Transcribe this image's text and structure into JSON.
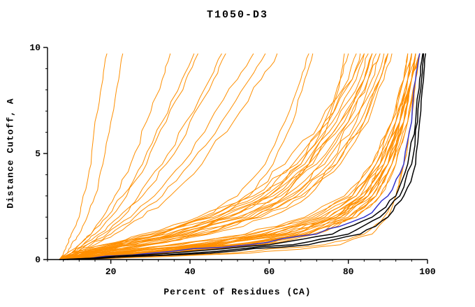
{
  "chart_data": {
    "type": "line",
    "title": "T1050-D3",
    "xlabel": "Percent of Residues (CA)",
    "ylabel": "Distance Cutoff, A",
    "xlim": [
      4,
      100
    ],
    "ylim": [
      0,
      10
    ],
    "xticks": [
      20,
      40,
      60,
      80,
      100
    ],
    "yticks": [
      0,
      5,
      10
    ],
    "x_minor_step": 4,
    "y_minor_step": 1,
    "grid": false,
    "legend_position": "none",
    "colors": {
      "orange": "#ff8f00",
      "blue": "#3333cc",
      "black": "#000000",
      "axis": "#000000",
      "background": "#ffffff"
    },
    "shared_y": [
      0,
      0.3,
      0.7,
      1.2,
      2,
      3,
      4.5,
      6.5,
      8.5,
      9.7
    ],
    "series": [
      {
        "color": "orange",
        "x": [
          8,
          22,
          44,
          60,
          74,
          82,
          88,
          92,
          95,
          96
        ]
      },
      {
        "color": "orange",
        "x": [
          7,
          26,
          50,
          66,
          78,
          85,
          90,
          94,
          96,
          97
        ]
      },
      {
        "color": "orange",
        "x": [
          9,
          30,
          55,
          70,
          80,
          87,
          91,
          95,
          97,
          98
        ]
      },
      {
        "color": "orange",
        "x": [
          8,
          18,
          40,
          58,
          72,
          81,
          87,
          91,
          94,
          95
        ]
      },
      {
        "color": "orange",
        "x": [
          10,
          35,
          58,
          72,
          82,
          88,
          92,
          95,
          97,
          98
        ]
      },
      {
        "color": "orange",
        "x": [
          7,
          15,
          35,
          55,
          70,
          80,
          86,
          91,
          94,
          96
        ]
      },
      {
        "color": "orange",
        "x": [
          8,
          24,
          46,
          63,
          76,
          84,
          89,
          93,
          96,
          97
        ]
      },
      {
        "color": "orange",
        "x": [
          9,
          28,
          52,
          68,
          79,
          86,
          90,
          94,
          96,
          97
        ]
      },
      {
        "color": "orange",
        "x": [
          7,
          20,
          42,
          60,
          75,
          83,
          88,
          93,
          95,
          96
        ]
      },
      {
        "color": "orange",
        "x": [
          8,
          32,
          56,
          71,
          81,
          87,
          91,
          94,
          96,
          98
        ]
      },
      {
        "color": "orange",
        "x": [
          10,
          26,
          48,
          64,
          77,
          85,
          90,
          93,
          96,
          97
        ]
      },
      {
        "color": "orange",
        "x": [
          7,
          17,
          38,
          56,
          71,
          81,
          87,
          92,
          95,
          96
        ]
      },
      {
        "color": "orange",
        "x": [
          8,
          23,
          45,
          62,
          76,
          84,
          89,
          93,
          95,
          97
        ]
      },
      {
        "color": "orange",
        "x": [
          9,
          29,
          53,
          69,
          80,
          86,
          91,
          94,
          96,
          98
        ]
      },
      {
        "color": "orange",
        "x": [
          7,
          21,
          43,
          61,
          75,
          83,
          89,
          93,
          96,
          97
        ]
      },
      {
        "color": "orange",
        "x": [
          8,
          27,
          51,
          67,
          78,
          85,
          90,
          94,
          96,
          97
        ]
      },
      {
        "color": "orange",
        "x": [
          9,
          33,
          57,
          72,
          82,
          88,
          92,
          95,
          97,
          98
        ]
      },
      {
        "color": "orange",
        "x": [
          7,
          19,
          41,
          59,
          73,
          82,
          88,
          92,
          95,
          96
        ]
      },
      {
        "color": "orange",
        "x": [
          8,
          25,
          47,
          64,
          77,
          84,
          89,
          93,
          96,
          97
        ]
      },
      {
        "color": "orange",
        "x": [
          10,
          31,
          54,
          70,
          81,
          87,
          91,
          94,
          96,
          98
        ]
      },
      {
        "color": "orange",
        "x": [
          7,
          16,
          36,
          54,
          69,
          79,
          86,
          91,
          94,
          95
        ]
      },
      {
        "color": "orange",
        "x": [
          8,
          24,
          48,
          65,
          77,
          85,
          90,
          93,
          96,
          97
        ]
      },
      {
        "color": "orange",
        "x": [
          8,
          14,
          26,
          40,
          55,
          66,
          75,
          82,
          87,
          89
        ]
      },
      {
        "color": "orange",
        "x": [
          7,
          12,
          22,
          34,
          48,
          60,
          70,
          78,
          84,
          86
        ]
      },
      {
        "color": "orange",
        "x": [
          9,
          15,
          28,
          42,
          57,
          68,
          77,
          84,
          88,
          90
        ]
      },
      {
        "color": "orange",
        "x": [
          8,
          13,
          24,
          37,
          52,
          63,
          72,
          80,
          85,
          87
        ]
      },
      {
        "color": "orange",
        "x": [
          7,
          11,
          20,
          31,
          45,
          57,
          67,
          75,
          81,
          84
        ]
      },
      {
        "color": "orange",
        "x": [
          8,
          12,
          23,
          36,
          50,
          62,
          71,
          79,
          84,
          86
        ]
      },
      {
        "color": "orange",
        "x": [
          9,
          16,
          30,
          45,
          60,
          70,
          78,
          85,
          89,
          91
        ]
      },
      {
        "color": "orange",
        "x": [
          7,
          10,
          18,
          28,
          42,
          54,
          64,
          73,
          80,
          82
        ]
      },
      {
        "color": "orange",
        "x": [
          8,
          13,
          25,
          39,
          54,
          65,
          74,
          81,
          86,
          88
        ]
      },
      {
        "color": "orange",
        "x": [
          7,
          11,
          21,
          33,
          47,
          59,
          69,
          77,
          83,
          85
        ]
      },
      {
        "color": "orange",
        "x": [
          8,
          14,
          27,
          41,
          56,
          67,
          76,
          83,
          88,
          90
        ]
      },
      {
        "color": "orange",
        "x": [
          9,
          12,
          22,
          35,
          49,
          61,
          70,
          78,
          84,
          86
        ]
      },
      {
        "color": "orange",
        "x": [
          7,
          10,
          19,
          30,
          44,
          56,
          66,
          74,
          81,
          83
        ]
      },
      {
        "color": "orange",
        "x": [
          8,
          15,
          29,
          44,
          58,
          69,
          77,
          84,
          88,
          90
        ]
      },
      {
        "color": "orange",
        "x": [
          7,
          12,
          24,
          38,
          53,
          64,
          73,
          80,
          85,
          88
        ]
      },
      {
        "color": "orange",
        "x": [
          8,
          11,
          20,
          32,
          46,
          58,
          68,
          76,
          82,
          84
        ]
      },
      {
        "color": "orange",
        "x": [
          7,
          8,
          9,
          10,
          12,
          13,
          15,
          16,
          18,
          19
        ]
      },
      {
        "color": "orange",
        "x": [
          7,
          9,
          10,
          12,
          14,
          16,
          18,
          20,
          22,
          23
        ]
      },
      {
        "color": "orange",
        "x": [
          8,
          10,
          12,
          15,
          18,
          21,
          25,
          29,
          33,
          35
        ]
      },
      {
        "color": "orange",
        "x": [
          7,
          10,
          13,
          16,
          20,
          24,
          29,
          34,
          39,
          42
        ]
      },
      {
        "color": "orange",
        "x": [
          8,
          11,
          14,
          18,
          23,
          28,
          34,
          40,
          46,
          49
        ]
      },
      {
        "color": "orange",
        "x": [
          7,
          10,
          14,
          19,
          25,
          31,
          38,
          45,
          52,
          56
        ]
      },
      {
        "color": "orange",
        "x": [
          8,
          12,
          16,
          21,
          28,
          35,
          43,
          51,
          58,
          62
        ]
      },
      {
        "color": "orange",
        "x": [
          7,
          11,
          15,
          20,
          26,
          33,
          40,
          48,
          55,
          59
        ]
      },
      {
        "color": "orange",
        "x": [
          8,
          10,
          13,
          17,
          22,
          27,
          33,
          39,
          45,
          48
        ]
      },
      {
        "color": "orange",
        "x": [
          7,
          9,
          12,
          15,
          19,
          23,
          28,
          33,
          38,
          41
        ]
      },
      {
        "color": "orange",
        "x": [
          10,
          50,
          74,
          84,
          89,
          92,
          94,
          96,
          97,
          98
        ]
      },
      {
        "color": "orange",
        "x": [
          9,
          55,
          78,
          86,
          90,
          92,
          94,
          96,
          97,
          98
        ]
      },
      {
        "color": "orange",
        "x": [
          7,
          13,
          24,
          37,
          50,
          60,
          68,
          74,
          78,
          80
        ]
      },
      {
        "color": "orange",
        "x": [
          8,
          16,
          30,
          44,
          56,
          64,
          70,
          75,
          78,
          79
        ]
      },
      {
        "color": "orange",
        "x": [
          7,
          12,
          21,
          32,
          43,
          52,
          59,
          64,
          68,
          70
        ]
      },
      {
        "color": "orange",
        "x": [
          8,
          14,
          25,
          36,
          47,
          55,
          61,
          66,
          69,
          71
        ]
      },
      {
        "color": "blue",
        "x": [
          8,
          30,
          55,
          72,
          84,
          90,
          94,
          96,
          97,
          98
        ]
      },
      {
        "color": "black",
        "x": [
          8,
          40,
          66,
          80,
          88,
          93,
          96,
          97.5,
          98.5,
          99
        ]
      },
      {
        "color": "black",
        "x": [
          9,
          45,
          70,
          83,
          90,
          94,
          97,
          98,
          99,
          99.5
        ]
      },
      {
        "color": "black",
        "x": [
          7,
          35,
          60,
          76,
          86,
          92,
          95,
          97,
          98,
          98.8
        ]
      }
    ]
  }
}
